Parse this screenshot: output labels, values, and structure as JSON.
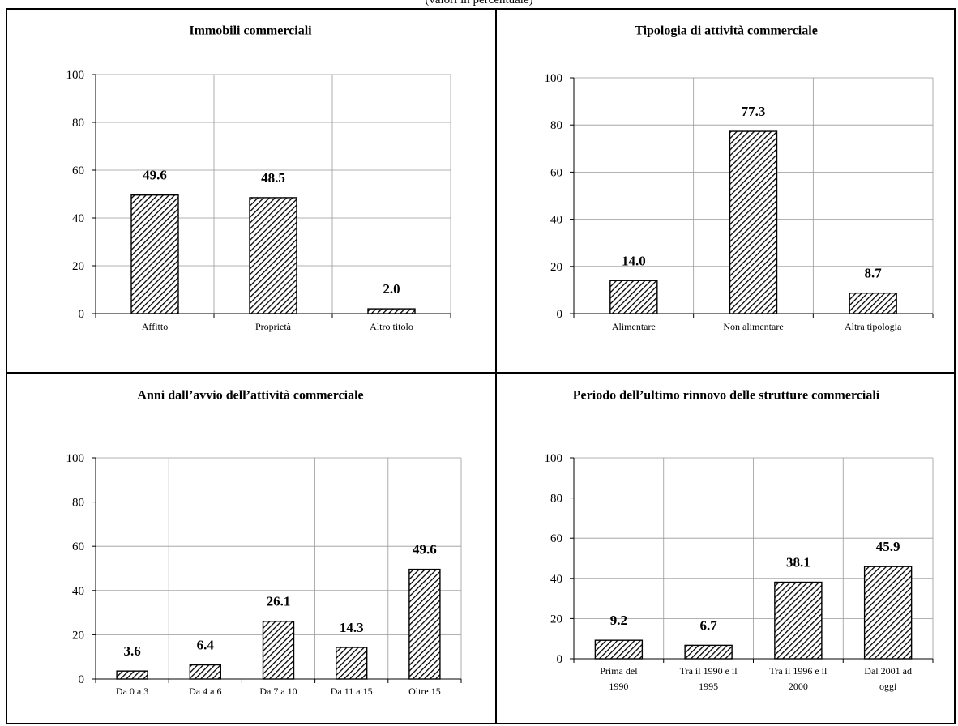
{
  "page": {
    "subtitle": "(valori in percentuale)"
  },
  "chart_data": [
    {
      "type": "bar",
      "title": "Immobili commerciali",
      "categories": [
        [
          "Affitto"
        ],
        [
          "Proprietà"
        ],
        [
          "Altro titolo"
        ]
      ],
      "values": [
        49.6,
        48.5,
        2.0
      ],
      "ylim": [
        0,
        100
      ],
      "yticks": [
        0,
        20,
        40,
        60,
        80,
        100
      ],
      "grid": true,
      "bar_fill": "diagonal-hatch",
      "xlabel": "",
      "ylabel": ""
    },
    {
      "type": "bar",
      "title": "Tipologia di attività commerciale",
      "categories": [
        [
          "Alimentare"
        ],
        [
          "Non alimentare"
        ],
        [
          "Altra tipologia"
        ]
      ],
      "values": [
        14.0,
        77.3,
        8.7
      ],
      "ylim": [
        0,
        100
      ],
      "yticks": [
        0,
        20,
        40,
        60,
        80,
        100
      ],
      "grid": true,
      "bar_fill": "diagonal-hatch",
      "xlabel": "",
      "ylabel": ""
    },
    {
      "type": "bar",
      "title": "Anni dall’avvio dell’attività commerciale",
      "categories": [
        [
          "Da 0 a 3"
        ],
        [
          "Da 4 a 6"
        ],
        [
          "Da 7 a 10"
        ],
        [
          "Da 11 a 15"
        ],
        [
          "Oltre 15"
        ]
      ],
      "values": [
        3.6,
        6.4,
        26.1,
        14.3,
        49.6
      ],
      "ylim": [
        0,
        100
      ],
      "yticks": [
        0,
        20,
        40,
        60,
        80,
        100
      ],
      "grid": true,
      "bar_fill": "diagonal-hatch",
      "xlabel": "",
      "ylabel": ""
    },
    {
      "type": "bar",
      "title": "Periodo dell’ultimo rinnovo delle strutture commerciali",
      "categories": [
        [
          "Prima del",
          "1990"
        ],
        [
          "Tra il 1990 e il",
          "1995"
        ],
        [
          "Tra il 1996 e il",
          "2000"
        ],
        [
          "Dal 2001 ad",
          "oggi"
        ]
      ],
      "values": [
        9.2,
        6.7,
        38.1,
        45.9
      ],
      "ylim": [
        0,
        100
      ],
      "yticks": [
        0,
        20,
        40,
        60,
        80,
        100
      ],
      "grid": true,
      "bar_fill": "diagonal-hatch",
      "xlabel": "",
      "ylabel": ""
    }
  ],
  "colors": {
    "bar_stroke": "#000000",
    "hatch": "#000000",
    "grid": "#999999",
    "frame": "#000000"
  }
}
